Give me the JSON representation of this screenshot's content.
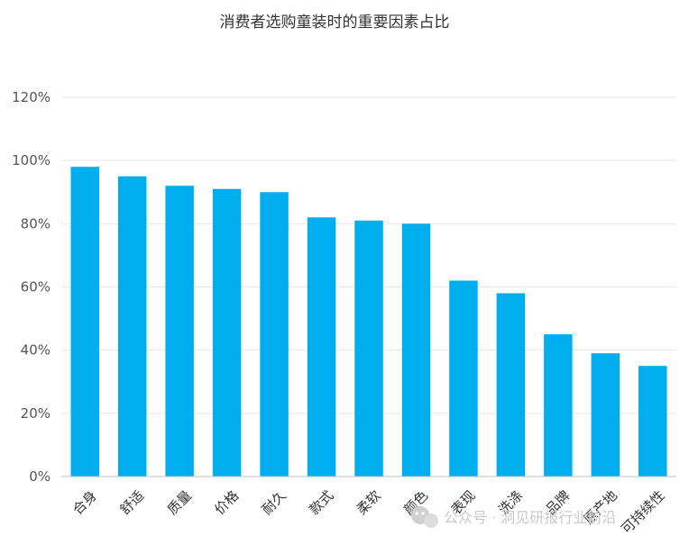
{
  "chart_data": {
    "type": "bar",
    "title": "消费者选购童装时的重要因素占比",
    "categories": [
      "合身",
      "舒适",
      "质量",
      "价格",
      "耐久",
      "款式",
      "柔软",
      "颜色",
      "表现",
      "洗涤",
      "品牌",
      "原产地",
      "可持续性"
    ],
    "values": [
      98,
      95,
      92,
      91,
      90,
      82,
      81,
      80,
      62,
      58,
      45,
      39,
      35
    ],
    "ylim": [
      0,
      120
    ],
    "yticks": [
      "0%",
      "20%",
      "40%",
      "60%",
      "80%",
      "100%",
      "120%"
    ],
    "grid": true,
    "legend": "none",
    "bar_color": "#00aeef"
  },
  "watermark": {
    "icon": "wechat-icon",
    "text": "公众号 · 洞见研报行业前沿"
  }
}
